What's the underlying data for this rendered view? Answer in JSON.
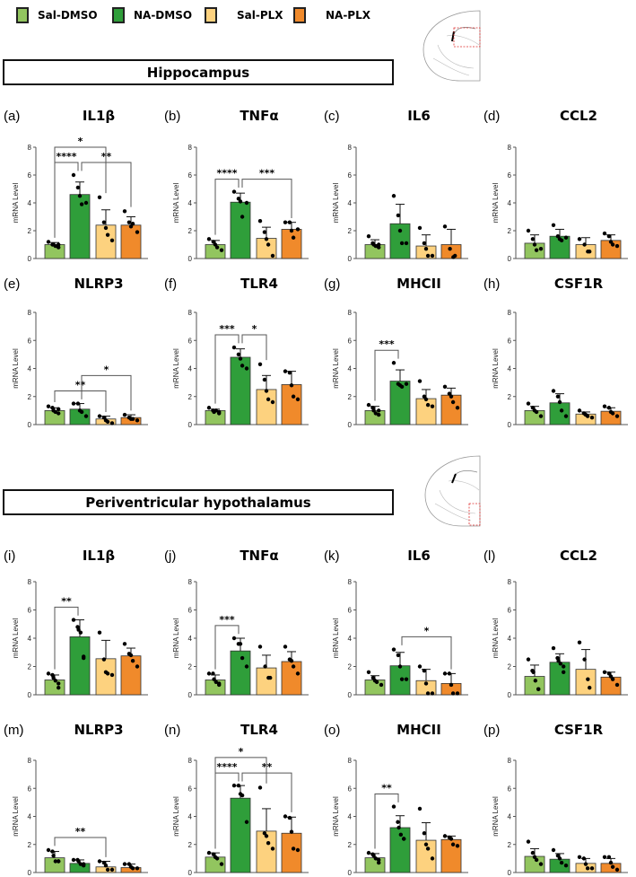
{
  "legend": [
    {
      "label": "Sal-DMSO",
      "color": "#92c55f"
    },
    {
      "label": "NA-DMSO",
      "color": "#2f9e3a"
    },
    {
      "label": "Sal-PLX",
      "color": "#fdd27f"
    },
    {
      "label": "NA-PLX",
      "color": "#f08a2b"
    }
  ],
  "sections": [
    {
      "title": "Hippocampus"
    },
    {
      "title": "Periventricular hypothalamus"
    }
  ],
  "chart_data": [
    {
      "type": "bar",
      "panel": "(a)",
      "title": "IL1β",
      "ylabel": "mRNA Level",
      "ylim": [
        0,
        8
      ],
      "yticks": [
        "0",
        "2",
        "4",
        "6",
        "8"
      ],
      "categories": [
        "Sal-DMSO",
        "NA-DMSO",
        "Sal-PLX",
        "NA-PLX"
      ],
      "means": [
        1.0,
        4.6,
        2.4,
        2.4
      ],
      "error_upper": [
        1.15,
        5.5,
        3.5,
        3.0
      ],
      "points": [
        [
          1.2,
          1.0,
          1.0,
          0.9,
          0.8,
          1.0
        ],
        [
          6.0,
          5.1,
          4.5,
          3.9,
          4.0
        ],
        [
          4.4,
          2.6,
          2.2,
          1.7,
          1.3
        ],
        [
          3.4,
          2.6,
          2.3,
          2.5,
          1.9
        ]
      ],
      "significance": [
        {
          "groups": [
            0,
            1
          ],
          "label": "****"
        },
        {
          "groups": [
            1,
            3
          ],
          "label": "**"
        },
        {
          "groups": [
            0,
            2
          ],
          "label": "*"
        }
      ]
    },
    {
      "type": "bar",
      "panel": "(b)",
      "title": "TNFα",
      "ylabel": "mRNA Level",
      "ylim": [
        0,
        8
      ],
      "yticks": [
        "0",
        "2",
        "4",
        "6",
        "8"
      ],
      "categories": [
        "Sal-DMSO",
        "NA-DMSO",
        "Sal-PLX",
        "NA-PLX"
      ],
      "means": [
        1.0,
        4.05,
        1.45,
        2.1
      ],
      "error_upper": [
        1.3,
        4.7,
        2.25,
        2.6
      ],
      "points": [
        [
          1.4,
          1.2,
          1.0,
          0.8,
          0.6
        ],
        [
          4.8,
          4.3,
          4.1,
          3.0,
          4.0
        ],
        [
          2.7,
          1.9,
          1.4,
          1.0,
          0.2
        ],
        [
          2.6,
          2.6,
          2.0,
          1.5,
          2.1
        ]
      ],
      "significance": [
        {
          "groups": [
            0,
            1
          ],
          "label": "****"
        },
        {
          "groups": [
            1,
            3
          ],
          "label": "***"
        }
      ]
    },
    {
      "type": "bar",
      "panel": "(c)",
      "title": "IL6",
      "ylabel": "mRNA Level",
      "ylim": [
        0,
        8
      ],
      "yticks": [
        "0",
        "2",
        "4",
        "6",
        "8"
      ],
      "categories": [
        "Sal-DMSO",
        "NA-DMSO",
        "Sal-PLX",
        "NA-PLX"
      ],
      "means": [
        1.0,
        2.5,
        0.9,
        1.0
      ],
      "error_upper": [
        1.35,
        3.9,
        1.7,
        2.1
      ],
      "points": [
        [
          1.6,
          1.1,
          1.0,
          0.9,
          1.0,
          0.8
        ],
        [
          4.5,
          3.1,
          2.0,
          1.1,
          1.1
        ],
        [
          2.2,
          1.1,
          0.7,
          0.2,
          0.2
        ],
        [
          2.3,
          0.7,
          0.1,
          0.2
        ]
      ],
      "significance": []
    },
    {
      "type": "bar",
      "panel": "(d)",
      "title": "CCL2",
      "ylabel": "mRNA Level",
      "ylim": [
        0,
        8
      ],
      "yticks": [
        "0",
        "2",
        "4",
        "6",
        "8"
      ],
      "categories": [
        "Sal-DMSO",
        "NA-DMSO",
        "Sal-PLX",
        "NA-PLX"
      ],
      "means": [
        1.1,
        1.6,
        1.0,
        1.3
      ],
      "error_upper": [
        1.7,
        2.1,
        1.5,
        1.7
      ],
      "points": [
        [
          2.0,
          1.4,
          1.0,
          0.6,
          0.7
        ],
        [
          2.4,
          1.6,
          1.4,
          1.3,
          1.5
        ],
        [
          1.4,
          1.0,
          0.5,
          0.5
        ],
        [
          1.8,
          1.6,
          1.2,
          1.0,
          0.9
        ]
      ],
      "significance": []
    },
    {
      "type": "bar",
      "panel": "(e)",
      "title": "NLRP3",
      "ylabel": "mRNA Level",
      "ylim": [
        0,
        8
      ],
      "yticks": [
        "0",
        "2",
        "4",
        "6",
        "8"
      ],
      "categories": [
        "Sal-DMSO",
        "NA-DMSO",
        "Sal-PLX",
        "NA-PLX"
      ],
      "means": [
        1.0,
        1.1,
        0.4,
        0.5
      ],
      "error_upper": [
        1.2,
        1.5,
        0.6,
        0.7
      ],
      "points": [
        [
          1.3,
          1.2,
          1.0,
          0.9,
          0.8,
          1.1
        ],
        [
          1.5,
          1.5,
          1.0,
          0.9,
          0.6
        ],
        [
          0.6,
          0.5,
          0.3,
          0.2,
          0.1
        ],
        [
          0.7,
          0.5,
          0.4,
          0.4,
          0.3
        ]
      ],
      "significance": [
        {
          "groups": [
            0,
            2
          ],
          "label": "**"
        },
        {
          "groups": [
            1,
            3
          ],
          "label": "*"
        }
      ]
    },
    {
      "type": "bar",
      "panel": "(f)",
      "title": "TLR4",
      "ylabel": "mRNA Level",
      "ylim": [
        0,
        8
      ],
      "yticks": [
        "0",
        "2",
        "4",
        "6",
        "8"
      ],
      "categories": [
        "Sal-DMSO",
        "NA-DMSO",
        "Sal-PLX",
        "NA-PLX"
      ],
      "means": [
        1.0,
        4.8,
        2.5,
        2.85
      ],
      "error_upper": [
        1.1,
        5.4,
        3.5,
        3.8
      ],
      "points": [
        [
          1.2,
          1.0,
          0.9,
          1.0,
          0.9,
          0.8
        ],
        [
          5.5,
          5.0,
          4.7,
          4.2,
          4.0
        ],
        [
          4.3,
          3.2,
          2.4,
          1.8,
          1.6
        ],
        [
          3.8,
          3.7,
          2.8,
          2.0,
          1.8
        ]
      ],
      "significance": [
        {
          "groups": [
            0,
            1
          ],
          "label": "***"
        },
        {
          "groups": [
            1,
            2
          ],
          "label": "*"
        }
      ]
    },
    {
      "type": "bar",
      "panel": "(g)",
      "title": "MHCII",
      "ylabel": "mRNA Level",
      "ylim": [
        0,
        8
      ],
      "yticks": [
        "0",
        "2",
        "4",
        "6",
        "8"
      ],
      "categories": [
        "Sal-DMSO",
        "NA-DMSO",
        "Sal-PLX",
        "NA-PLX"
      ],
      "means": [
        1.0,
        3.1,
        1.85,
        2.1
      ],
      "error_upper": [
        1.3,
        3.9,
        2.5,
        2.6
      ],
      "points": [
        [
          1.4,
          1.2,
          1.0,
          0.8,
          0.7,
          1.0
        ],
        [
          4.4,
          2.9,
          2.8,
          2.7,
          2.9
        ],
        [
          3.1,
          2.0,
          1.8,
          1.4,
          1.3
        ],
        [
          2.7,
          2.2,
          2.0,
          1.6,
          1.2
        ]
      ],
      "significance": [
        {
          "groups": [
            0,
            1
          ],
          "label": "***"
        }
      ]
    },
    {
      "type": "bar",
      "panel": "(h)",
      "title": "CSF1R",
      "ylabel": "mRNA Level",
      "ylim": [
        0,
        8
      ],
      "yticks": [
        "0",
        "2",
        "4",
        "6",
        "8"
      ],
      "categories": [
        "Sal-DMSO",
        "NA-DMSO",
        "Sal-PLX",
        "NA-PLX"
      ],
      "means": [
        1.0,
        1.55,
        0.75,
        0.95
      ],
      "error_upper": [
        1.3,
        2.2,
        0.9,
        1.2
      ],
      "points": [
        [
          1.5,
          1.2,
          1.0,
          0.9,
          0.6
        ],
        [
          2.4,
          2.0,
          1.6,
          1.0,
          0.6
        ],
        [
          1.0,
          0.8,
          0.7,
          0.6,
          0.5
        ],
        [
          1.3,
          1.2,
          0.9,
          0.8,
          0.6
        ]
      ],
      "significance": []
    },
    {
      "type": "bar",
      "panel": "(i)",
      "title": "IL1β",
      "ylabel": "mRNA Level",
      "ylim": [
        0,
        8
      ],
      "yticks": [
        "0",
        "2",
        "4",
        "6",
        "8"
      ],
      "categories": [
        "Sal-DMSO",
        "NA-DMSO",
        "Sal-PLX",
        "NA-PLX"
      ],
      "means": [
        1.05,
        4.1,
        2.55,
        2.75
      ],
      "error_upper": [
        1.4,
        5.3,
        3.85,
        3.3
      ],
      "points": [
        [
          1.5,
          1.4,
          1.2,
          1.0,
          0.8,
          0.5
        ],
        [
          5.3,
          4.8,
          4.6,
          4.4,
          2.7,
          2.6
        ],
        [
          4.4,
          2.5,
          1.6,
          1.5,
          1.4
        ],
        [
          3.6,
          2.9,
          2.8,
          2.4,
          2.0
        ]
      ],
      "significance": [
        {
          "groups": [
            0,
            1
          ],
          "label": "**"
        }
      ]
    },
    {
      "type": "bar",
      "panel": "(j)",
      "title": "TNFα",
      "ylabel": "mRNA Level",
      "ylim": [
        0,
        8
      ],
      "yticks": [
        "0",
        "2",
        "4",
        "6",
        "8"
      ],
      "categories": [
        "Sal-DMSO",
        "NA-DMSO",
        "Sal-PLX",
        "NA-PLX"
      ],
      "means": [
        1.05,
        3.1,
        1.9,
        2.35
      ],
      "error_upper": [
        1.4,
        4.0,
        2.8,
        3.05
      ],
      "points": [
        [
          1.5,
          1.5,
          1.1,
          0.9,
          0.8,
          0.7
        ],
        [
          4.0,
          3.6,
          3.6,
          2.6,
          2.0
        ],
        [
          3.4,
          2.0,
          1.2,
          1.2
        ],
        [
          3.4,
          2.5,
          2.4,
          2.0,
          1.5
        ]
      ],
      "significance": [
        {
          "groups": [
            0,
            1
          ],
          "label": "***"
        }
      ]
    },
    {
      "type": "bar",
      "panel": "(k)",
      "title": "IL6",
      "ylabel": "mRNA Level",
      "ylim": [
        0,
        8
      ],
      "yticks": [
        "0",
        "2",
        "4",
        "6",
        "8"
      ],
      "categories": [
        "Sal-DMSO",
        "NA-DMSO",
        "Sal-PLX",
        "NA-PLX"
      ],
      "means": [
        1.05,
        2.05,
        1.0,
        0.8
      ],
      "error_upper": [
        1.35,
        3.0,
        1.8,
        1.5
      ],
      "points": [
        [
          1.6,
          1.2,
          1.0,
          0.9,
          0.7
        ],
        [
          3.2,
          2.8,
          2.0,
          1.1,
          1.1
        ],
        [
          2.0,
          1.7,
          0.8,
          0.1,
          0.1
        ],
        [
          1.5,
          1.5,
          0.7,
          0.1,
          0.1
        ]
      ],
      "significance": [
        {
          "groups": [
            1,
            3
          ],
          "label": "*"
        }
      ]
    },
    {
      "type": "bar",
      "panel": "(l)",
      "title": "CCL2",
      "ylabel": "mRNA Level",
      "ylim": [
        0,
        8
      ],
      "yticks": [
        "0",
        "2",
        "4",
        "6",
        "8"
      ],
      "categories": [
        "Sal-DMSO",
        "NA-DMSO",
        "Sal-PLX",
        "NA-PLX"
      ],
      "means": [
        1.3,
        2.3,
        1.8,
        1.25
      ],
      "error_upper": [
        2.1,
        2.9,
        3.2,
        1.6
      ],
      "points": [
        [
          2.5,
          1.7,
          1.6,
          1.0,
          0.4,
          0.4
        ],
        [
          3.3,
          2.6,
          2.4,
          2.2,
          2.0,
          1.6
        ],
        [
          3.7,
          2.5,
          1.1,
          0.5
        ],
        [
          1.6,
          1.5,
          1.3,
          1.1,
          0.7
        ]
      ],
      "significance": []
    },
    {
      "type": "bar",
      "panel": "(m)",
      "title": "NLRP3",
      "ylabel": "mRNA Level",
      "ylim": [
        0,
        8
      ],
      "yticks": [
        "0",
        "2",
        "4",
        "6",
        "8"
      ],
      "categories": [
        "Sal-DMSO",
        "NA-DMSO",
        "Sal-PLX",
        "NA-PLX"
      ],
      "means": [
        1.05,
        0.65,
        0.4,
        0.35
      ],
      "error_upper": [
        1.5,
        0.9,
        0.8,
        0.6
      ],
      "points": [
        [
          1.6,
          1.5,
          1.2,
          0.8,
          0.8,
          0.8
        ],
        [
          0.9,
          0.9,
          0.8,
          0.6,
          0.6,
          0.5
        ],
        [
          0.8,
          0.7,
          0.5,
          0.2,
          0.2
        ],
        [
          0.6,
          0.6,
          0.4,
          0.3,
          0.3
        ]
      ],
      "significance": [
        {
          "groups": [
            0,
            2
          ],
          "label": "**"
        }
      ]
    },
    {
      "type": "bar",
      "panel": "(n)",
      "title": "TLR4",
      "ylabel": "mRNA Level",
      "ylim": [
        0,
        8
      ],
      "yticks": [
        "0",
        "2",
        "4",
        "6",
        "8"
      ],
      "categories": [
        "Sal-DMSO",
        "NA-DMSO",
        "Sal-PLX",
        "NA-PLX"
      ],
      "means": [
        1.1,
        5.3,
        2.95,
        2.8
      ],
      "error_upper": [
        1.4,
        6.2,
        4.55,
        3.95
      ],
      "points": [
        [
          1.4,
          1.3,
          1.1,
          1.0,
          0.6
        ],
        [
          6.2,
          6.2,
          5.6,
          5.5,
          3.6
        ],
        [
          6.05,
          2.8,
          2.6,
          2.1,
          1.7
        ],
        [
          4.0,
          3.9,
          2.9,
          1.7,
          1.6
        ]
      ],
      "significance": [
        {
          "groups": [
            0,
            1
          ],
          "label": "****"
        },
        {
          "groups": [
            1,
            3
          ],
          "label": "**"
        },
        {
          "groups": [
            0,
            2
          ],
          "label": "*"
        }
      ]
    },
    {
      "type": "bar",
      "panel": "(o)",
      "title": "MHCII",
      "ylabel": "mRNA Level",
      "ylim": [
        0,
        8
      ],
      "yticks": [
        "0",
        "2",
        "4",
        "6",
        "8"
      ],
      "categories": [
        "Sal-DMSO",
        "NA-DMSO",
        "Sal-PLX",
        "NA-PLX"
      ],
      "means": [
        1.05,
        3.2,
        2.3,
        2.35
      ],
      "error_upper": [
        1.35,
        4.05,
        3.55,
        2.6
      ],
      "points": [
        [
          1.4,
          1.3,
          1.2,
          1.0,
          0.9,
          0.7
        ],
        [
          4.7,
          3.6,
          3.2,
          2.7,
          2.4,
          2.4
        ],
        [
          4.55,
          2.8,
          2.0,
          1.7,
          1.0
        ],
        [
          2.6,
          2.5,
          2.4,
          2.0,
          1.9
        ]
      ],
      "significance": [
        {
          "groups": [
            0,
            1
          ],
          "label": "**"
        }
      ]
    },
    {
      "type": "bar",
      "panel": "(p)",
      "title": "CSF1R",
      "ylabel": "mRNA Level",
      "ylim": [
        0,
        8
      ],
      "yticks": [
        "0",
        "2",
        "4",
        "6",
        "8"
      ],
      "categories": [
        "Sal-DMSO",
        "NA-DMSO",
        "Sal-PLX",
        "NA-PLX"
      ],
      "means": [
        1.15,
        0.95,
        0.65,
        0.65
      ],
      "error_upper": [
        1.7,
        1.35,
        1.0,
        1.0
      ],
      "points": [
        [
          2.2,
          1.4,
          1.1,
          0.9,
          0.6
        ],
        [
          1.6,
          1.2,
          1.0,
          0.7,
          0.5
        ],
        [
          1.1,
          1.0,
          0.6,
          0.3,
          0.3
        ],
        [
          1.1,
          1.1,
          0.7,
          0.4,
          0.2
        ]
      ],
      "significance": []
    }
  ]
}
